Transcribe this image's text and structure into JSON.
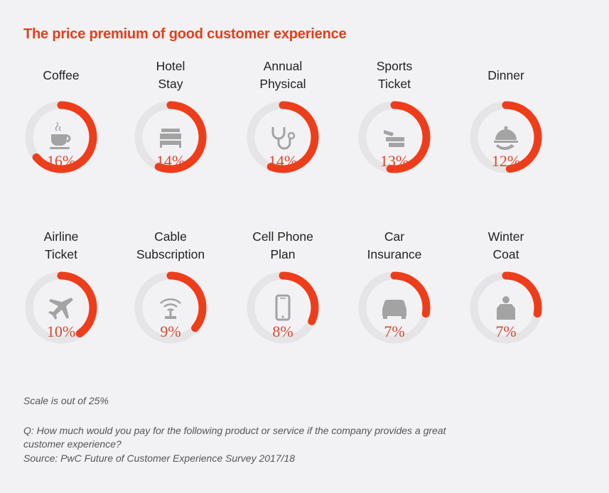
{
  "title": "The price premium of good customer experience",
  "colors": {
    "accent": "#ee3d1a",
    "track": "#e5e4e7",
    "icon": "#a3a3a3",
    "percent": "#d9472f"
  },
  "chart_data": {
    "type": "radial-progress",
    "title": "The price premium of good customer experience",
    "scale_max": 25,
    "unit": "%",
    "items": [
      {
        "label": "Coffee",
        "value": 16,
        "display": "16%",
        "icon": "coffee-cup-icon"
      },
      {
        "label": "Hotel\nStay",
        "value": 14,
        "display": "14%",
        "icon": "bed-icon"
      },
      {
        "label": "Annual\nPhysical",
        "value": 14,
        "display": "14%",
        "icon": "stethoscope-icon"
      },
      {
        "label": "Sports\nTicket",
        "value": 13,
        "display": "13%",
        "icon": "ticket-icon"
      },
      {
        "label": "Dinner",
        "value": 12,
        "display": "12%",
        "icon": "cloche-icon"
      },
      {
        "label": "Airline\nTicket",
        "value": 10,
        "display": "10%",
        "icon": "airplane-icon"
      },
      {
        "label": "Cable\nSubscription",
        "value": 9,
        "display": "9%",
        "icon": "wifi-router-icon"
      },
      {
        "label": "Cell Phone\nPlan",
        "value": 8,
        "display": "8%",
        "icon": "phone-icon"
      },
      {
        "label": "Car\nInsurance",
        "value": 7,
        "display": "7%",
        "icon": "car-icon"
      },
      {
        "label": "Winter\nCoat",
        "value": 7,
        "display": "7%",
        "icon": "coat-icon"
      }
    ]
  },
  "notes": {
    "scale": "Scale is out of 25%",
    "question": "Q: How much would you pay for the following product or service if the company provides a great customer experience?",
    "source": "Source: PwC Future of Customer Experience Survey 2017/18"
  }
}
